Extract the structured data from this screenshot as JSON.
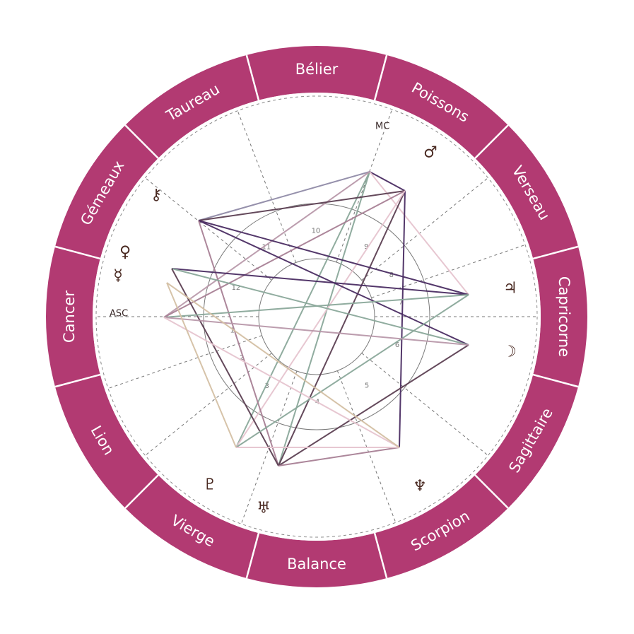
{
  "signs": [
    "Bélier",
    "Taureau",
    "Gémeaux",
    "Cancer",
    "Lion",
    "Vierge",
    "Balance",
    "Scorpion",
    "Sagittaire",
    "Capricorne",
    "Verseau",
    "Poissons"
  ],
  "houses": [
    "1",
    "2",
    "3",
    "4",
    "5",
    "6",
    "7",
    "8",
    "9",
    "10",
    "11",
    "12"
  ],
  "axes": {
    "asc": "ASC",
    "mc": "MC"
  },
  "planets": [
    {
      "name": "mars",
      "glyph": "♂"
    },
    {
      "name": "chiron",
      "glyph": "⚷"
    },
    {
      "name": "venus",
      "glyph": "♀"
    },
    {
      "name": "mercury",
      "glyph": "☿"
    },
    {
      "name": "jupiter",
      "glyph": "♃"
    },
    {
      "name": "moon",
      "glyph": "☽"
    },
    {
      "name": "pluto",
      "glyph": "♇"
    },
    {
      "name": "uranus",
      "glyph": "♅"
    },
    {
      "name": "neptune",
      "glyph": "♆"
    }
  ],
  "colors": {
    "ring": "#b23a72",
    "aspect_palette": [
      "#8f8aa6",
      "#5c3f52",
      "#a88095",
      "#4a2c62",
      "#8aa89a",
      "#e6c4cf",
      "#d4c0a4",
      "#b898aa"
    ]
  }
}
